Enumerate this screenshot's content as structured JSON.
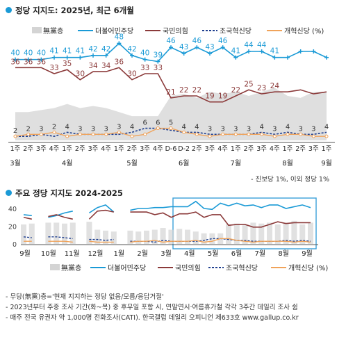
{
  "titles": {
    "top": "정당 지지도: 2025년, 최근 6개월",
    "bottom": "주요 정당 지지도 2024-2025"
  },
  "colors": {
    "minjoo": "#1a9ad6",
    "ppp": "#8b3a3a",
    "rebuild": "#1f3f8f",
    "reform": "#f0a35a",
    "none": "#d4d4d4",
    "dot": "#1a9ad6",
    "frame": "#3aa0d9"
  },
  "legend": {
    "none": "無黨층",
    "minjoo": "더불어민주당",
    "ppp": "국민의힘",
    "rebuild": "조국혁신당",
    "reform": "개혁신당 (%)"
  },
  "chart_data": [
    {
      "type": "line",
      "title": "정당 지지도: 2025년, 최근 6개월",
      "categories": [
        "1주",
        "2주",
        "3주",
        "4주",
        "1주",
        "2주",
        "3주",
        "4주",
        "1주",
        "2주",
        "3주",
        "4주",
        "D-6",
        "D-2",
        "2주",
        "3주",
        "4주",
        "1주",
        "2주",
        "3주",
        "4주",
        "1주",
        "2주",
        "3주",
        "1주"
      ],
      "month_labels": [
        {
          "index": 0,
          "label": "3월"
        },
        {
          "index": 4,
          "label": "4월"
        },
        {
          "index": 9,
          "label": "5월"
        },
        {
          "index": 13,
          "label": "6월"
        },
        {
          "index": 17,
          "label": "7월"
        },
        {
          "index": 21,
          "label": "8월"
        },
        {
          "index": 24,
          "label": "9월"
        }
      ],
      "series": [
        {
          "name": "더불어민주당",
          "key": "minjoo",
          "values": [
            40,
            40,
            40,
            41,
            41,
            41,
            42,
            42,
            48,
            42,
            40,
            39,
            46,
            43,
            46,
            43,
            46,
            41,
            44,
            44,
            41,
            41,
            44,
            44,
            41
          ]
        },
        {
          "name": "국민의힘",
          "key": "ppp",
          "values": [
            36,
            36,
            36,
            33,
            35,
            30,
            34,
            34,
            36,
            30,
            33,
            33,
            21,
            22,
            22,
            19,
            19,
            22,
            25,
            23,
            24,
            24,
            25,
            23,
            24
          ]
        },
        {
          "name": "조국혁신당",
          "key": "rebuild",
          "values": [
            2,
            2,
            3,
            2,
            4,
            3,
            3,
            3,
            3,
            4,
            6,
            6,
            5,
            4,
            4,
            3,
            3,
            3,
            3,
            4,
            3,
            4,
            3,
            3,
            4
          ]
        },
        {
          "name": "개혁신당 (%)",
          "key": "reform",
          "values": [
            2,
            3,
            3,
            4,
            2,
            3,
            3,
            3,
            4,
            2,
            3,
            6,
            6,
            4,
            3,
            2,
            3,
            3,
            3,
            3,
            2,
            3,
            3,
            2,
            2
          ]
        }
      ],
      "labels_minjoo": [
        "40",
        "40",
        "40",
        "41",
        "41",
        "41",
        "42",
        "42",
        "48",
        "42",
        "40",
        "39",
        "46",
        "43",
        "46",
        "43",
        "46",
        "41",
        "44",
        "44",
        "41"
      ],
      "labels_ppp": [
        "36",
        "36",
        "36",
        "33",
        "35",
        "30",
        "34",
        "34",
        "36",
        "30",
        "33",
        "33",
        "21",
        "22",
        "22",
        "19",
        "19",
        "22",
        "25",
        "23",
        "24"
      ],
      "labels_small": [
        "2",
        "2",
        "3",
        "2",
        "4",
        "3",
        "3",
        "3",
        "3",
        "4",
        "6",
        "6",
        "5",
        "4",
        "4",
        "3",
        "3",
        "3",
        "3",
        "4",
        "3",
        "4",
        "3",
        "3",
        "4"
      ],
      "undecided": [
        14,
        14,
        15,
        16,
        18,
        16,
        17,
        16,
        14,
        12,
        12,
        12,
        22,
        23,
        21,
        24,
        23,
        24,
        22,
        24,
        26,
        22,
        21,
        24,
        24
      ],
      "ylim": [
        0,
        55
      ],
      "grid": false,
      "legend_position": "top"
    },
    {
      "type": "line",
      "title": "주요 정당 지지도 2024-2025",
      "x_ticks": [
        "9월",
        "10월",
        "11월",
        "12월",
        "1월",
        "2월",
        "3월",
        "4월",
        "5월",
        "6월",
        "7월",
        "8월",
        "9월"
      ],
      "y_ticks": [
        0,
        20,
        40
      ],
      "ylim": [
        0,
        50
      ],
      "series": [
        {
          "name": "더불어민주당",
          "key": "minjoo",
          "values": [
            33,
            32,
            null,
            30,
            32,
            35,
            37,
            null,
            35,
            41,
            44,
            36,
            null,
            38,
            40,
            40,
            41,
            41,
            42,
            42,
            42,
            48,
            40,
            39,
            46,
            43,
            46,
            43,
            44,
            41,
            44,
            44,
            40,
            42,
            44,
            41
          ]
        },
        {
          "name": "국민의힘",
          "key": "ppp",
          "values": [
            30,
            28,
            null,
            31,
            33,
            30,
            28,
            null,
            28,
            37,
            38,
            36,
            null,
            36,
            36,
            36,
            33,
            35,
            30,
            34,
            34,
            36,
            30,
            33,
            33,
            21,
            22,
            22,
            19,
            19,
            22,
            25,
            23,
            24,
            24,
            24
          ]
        },
        {
          "name": "조국혁신당",
          "key": "rebuild",
          "values": [
            8,
            7,
            null,
            8,
            8,
            7,
            6,
            null,
            5,
            5,
            4,
            5,
            null,
            3,
            3,
            3,
            2,
            4,
            3,
            3,
            3,
            3,
            4,
            6,
            6,
            5,
            4,
            4,
            3,
            3,
            3,
            3,
            4,
            3,
            4,
            3
          ]
        },
        {
          "name": "개혁신당 (%)",
          "key": "reform",
          "values": [
            3,
            3,
            null,
            3,
            3,
            3,
            2,
            null,
            3,
            2,
            2,
            2,
            null,
            2,
            3,
            3,
            4,
            2,
            3,
            3,
            3,
            4,
            2,
            3,
            6,
            6,
            4,
            3,
            2,
            3,
            3,
            3,
            3,
            2,
            3,
            2
          ]
        }
      ],
      "undecided": [
        22,
        23,
        null,
        24,
        24,
        23,
        24,
        null,
        25,
        16,
        15,
        14,
        null,
        15,
        14,
        15,
        16,
        18,
        16,
        17,
        16,
        14,
        12,
        12,
        12,
        22,
        23,
        21,
        24,
        23,
        24,
        22,
        24,
        26,
        22,
        24
      ],
      "highlight_range": "2025년 3월-9월",
      "grid": false,
      "legend_position": "bottom"
    }
  ],
  "notes": {
    "extra": "- 진보당 1%, 이외 정당 1%",
    "n1": "- 무당(無黨)층='현재 지지하는 정당 없음/모름/응답거절'",
    "n2": "- 2023년부터 주중 조사 기간(화~목) 중 후무일 포함 시, 연말연시·여름휴가철 각각 3주간 데일리 조사 쉼",
    "n3": "- 매주 전국 유권자 약 1,000명 전화조사(CATI). 한국갤럽 데일리 오피니언 제633호 www.gallup.co.kr"
  }
}
